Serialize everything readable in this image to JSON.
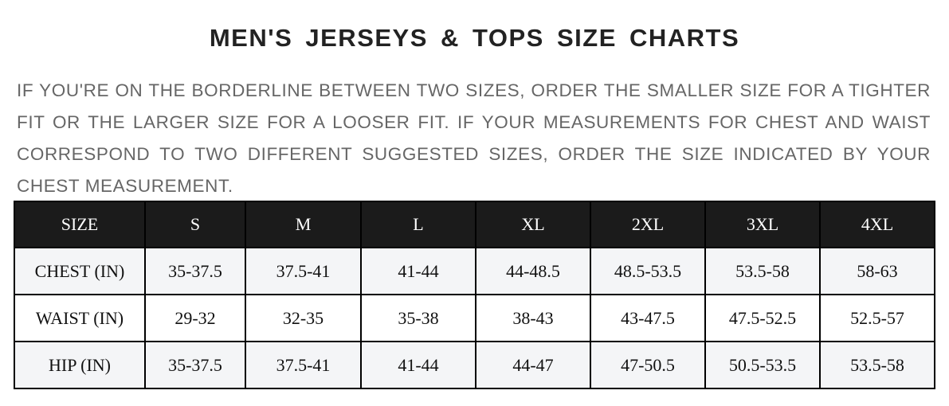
{
  "title": "MEN'S JERSEYS & TOPS SIZE CHARTS",
  "note": "IF YOU'RE ON THE BORDERLINE BETWEEN TWO SIZES, ORDER THE SMALLER SIZE FOR A TIGHTER FIT OR THE LARGER SIZE FOR A LOOSER FIT. IF YOUR MEASUREMENTS FOR CHEST AND WAIST CORRESPOND TO TWO DIFFERENT SUGGESTED SIZES, ORDER THE SIZE INDICATED BY YOUR CHEST MEASUREMENT.",
  "table": {
    "headers": [
      "SIZE",
      "S",
      "M",
      "L",
      "XL",
      "2XL",
      "3XL",
      "4XL"
    ],
    "rows": [
      [
        "CHEST (IN)",
        "35-37.5",
        "37.5-41",
        "41-44",
        "44-48.5",
        "48.5-53.5",
        "53.5-58",
        "58-63"
      ],
      [
        "WAIST (IN)",
        "29-32",
        "32-35",
        "35-38",
        "38-43",
        "43-47.5",
        "47.5-52.5",
        "52.5-57"
      ],
      [
        "HIP (IN)",
        "35-37.5",
        "37.5-41",
        "41-44",
        "44-47",
        "47-50.5",
        "50.5-53.5",
        "53.5-58"
      ]
    ]
  },
  "colors": {
    "header_bg": "#1b1b1b",
    "stripe_bg": "#f4f5f7",
    "note_text": "#666666"
  }
}
